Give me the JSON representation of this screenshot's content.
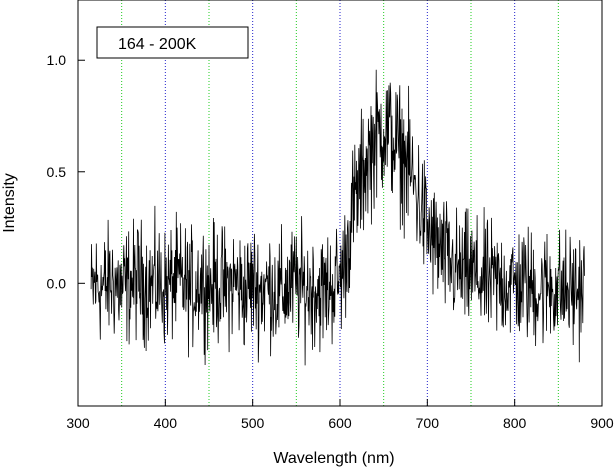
{
  "chart_data": {
    "type": "line",
    "title": "",
    "legend_label": "164 - 200K",
    "legend_placement": "top-left",
    "xlabel": "Wavelength (nm)",
    "ylabel": "Intensity",
    "xlim": [
      300,
      900
    ],
    "ylim": [
      -0.55,
      1.27
    ],
    "x_ticks": [
      300,
      400,
      500,
      600,
      700,
      800,
      900
    ],
    "x_tick_labels": [
      "300",
      "400",
      "500",
      "600",
      "700",
      "800",
      "900"
    ],
    "y_ticks": [
      0.0,
      0.5,
      1.0
    ],
    "y_tick_labels": [
      "0.0",
      "0.5",
      "1.0"
    ],
    "grid": {
      "vertical_green_at": [
        350,
        450,
        550,
        650,
        750,
        850
      ],
      "vertical_blue_at": [
        400,
        500,
        600,
        700,
        800
      ],
      "green_color": "#22cc22",
      "blue_color": "#2222cc"
    },
    "series": [
      {
        "line_color": "#000000",
        "x": [
          315,
          320,
          330,
          340,
          350,
          360,
          370,
          380,
          390,
          400,
          410,
          420,
          430,
          440,
          450,
          460,
          470,
          480,
          490,
          500,
          510,
          520,
          530,
          540,
          550,
          560,
          570,
          580,
          590,
          600,
          605,
          610,
          615,
          620,
          625,
          630,
          635,
          640,
          645,
          650,
          655,
          660,
          665,
          670,
          675,
          680,
          685,
          690,
          695,
          700,
          705,
          710,
          715,
          720,
          730,
          740,
          750,
          760,
          770,
          780,
          790,
          800,
          810,
          820,
          830,
          840,
          850,
          860,
          870,
          880
        ],
        "y": [
          -0.05,
          0.0,
          -0.02,
          0.01,
          -0.03,
          0.0,
          0.02,
          -0.01,
          0.0,
          -0.02,
          0.01,
          0.0,
          -0.03,
          0.02,
          -0.01,
          0.0,
          -0.02,
          0.01,
          -0.04,
          0.0,
          -0.03,
          -0.01,
          -0.05,
          -0.02,
          0.0,
          -0.03,
          -0.02,
          -0.04,
          -0.01,
          0.02,
          0.08,
          0.22,
          0.33,
          0.4,
          0.47,
          0.55,
          0.6,
          0.64,
          0.67,
          0.7,
          0.68,
          0.65,
          0.62,
          0.58,
          0.55,
          0.5,
          0.44,
          0.38,
          0.31,
          0.24,
          0.2,
          0.17,
          0.14,
          0.11,
          0.07,
          0.04,
          0.05,
          0.02,
          0.01,
          0.0,
          0.01,
          -0.01,
          0.0,
          -0.02,
          -0.03,
          -0.01,
          -0.02,
          -0.04,
          -0.03,
          -0.02
        ],
        "noise_amplitude": 0.13
      }
    ]
  }
}
